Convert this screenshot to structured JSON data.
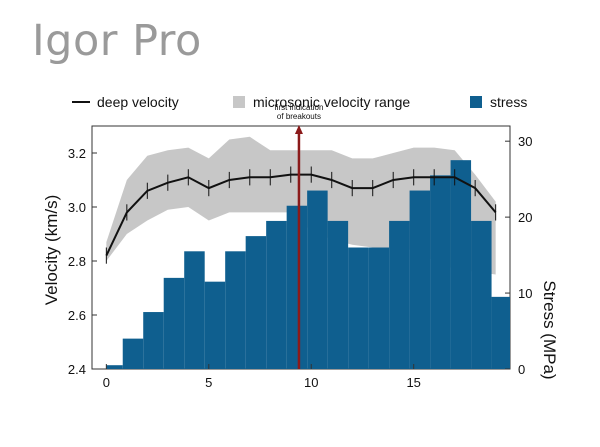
{
  "app": {
    "title": "Igor Pro"
  },
  "chart_data": {
    "type": "line",
    "legend": [
      "deep velocity",
      "microsonic velocity range",
      "stress"
    ],
    "colors": {
      "velocity_line": "#111111",
      "range_fill": "#c7c7c7",
      "stress_bar": "#0f5f8f",
      "annotation": "#8b1a1a"
    },
    "x": [
      0,
      1,
      2,
      3,
      4,
      5,
      6,
      7,
      8,
      9,
      10,
      11,
      12,
      13,
      14,
      15,
      16,
      17,
      18,
      19
    ],
    "series": [
      {
        "name": "deep velocity",
        "values": [
          2.82,
          2.98,
          3.06,
          3.09,
          3.11,
          3.07,
          3.1,
          3.11,
          3.11,
          3.12,
          3.12,
          3.1,
          3.07,
          3.07,
          3.1,
          3.11,
          3.11,
          3.11,
          3.07,
          2.98
        ],
        "error": 0.03
      },
      {
        "name": "microsonic velocity range",
        "upper": [
          2.87,
          3.1,
          3.19,
          3.21,
          3.22,
          3.18,
          3.25,
          3.26,
          3.21,
          3.21,
          3.21,
          3.21,
          3.18,
          3.18,
          3.2,
          3.22,
          3.22,
          3.21,
          3.12,
          3.02
        ],
        "lower": [
          2.8,
          2.9,
          2.95,
          2.99,
          3.0,
          2.95,
          2.98,
          2.98,
          2.98,
          2.98,
          2.91,
          2.88,
          2.86,
          2.85,
          2.85,
          2.84,
          2.8,
          2.77,
          2.76,
          2.75
        ]
      },
      {
        "name": "stress",
        "type": "bar",
        "bins": [
          [
            0,
            0.8
          ],
          [
            0.8,
            1.8
          ],
          [
            1.8,
            2.8
          ],
          [
            2.8,
            3.8
          ],
          [
            3.8,
            4.8
          ],
          [
            4.8,
            5.8
          ],
          [
            5.8,
            6.8
          ],
          [
            6.8,
            7.8
          ],
          [
            7.8,
            8.8
          ],
          [
            8.8,
            9.8
          ],
          [
            9.8,
            10.8
          ],
          [
            10.8,
            11.8
          ],
          [
            11.8,
            12.8
          ],
          [
            12.8,
            13.8
          ],
          [
            13.8,
            14.8
          ],
          [
            14.8,
            15.8
          ],
          [
            15.8,
            16.8
          ],
          [
            16.8,
            17.8
          ],
          [
            17.8,
            18.8
          ],
          [
            18.8,
            19.8
          ]
        ],
        "values": [
          0.5,
          4,
          7.5,
          12,
          15.5,
          11.5,
          15.5,
          17.5,
          19.5,
          21.5,
          23.5,
          19.5,
          16,
          16,
          19.5,
          23.5,
          25.5,
          27.5,
          19.5,
          9.5
        ]
      }
    ],
    "xlim": [
      -0.7,
      19.7
    ],
    "xticks": [
      0,
      5,
      10,
      15
    ],
    "ylabel": "Velocity (km/s)",
    "ylim": [
      2.4,
      3.3
    ],
    "yticks": [
      "2.4",
      "2.6",
      "2.8",
      "3.0",
      "3.2"
    ],
    "y2label": "Stress (MPa)",
    "y2lim": [
      0,
      32
    ],
    "y2ticks": [
      "0",
      "10",
      "20",
      "30"
    ],
    "annotation": {
      "text_line1": "first indication",
      "text_line2": "of breakouts",
      "x": 9.4,
      "stress_top": 32
    }
  }
}
